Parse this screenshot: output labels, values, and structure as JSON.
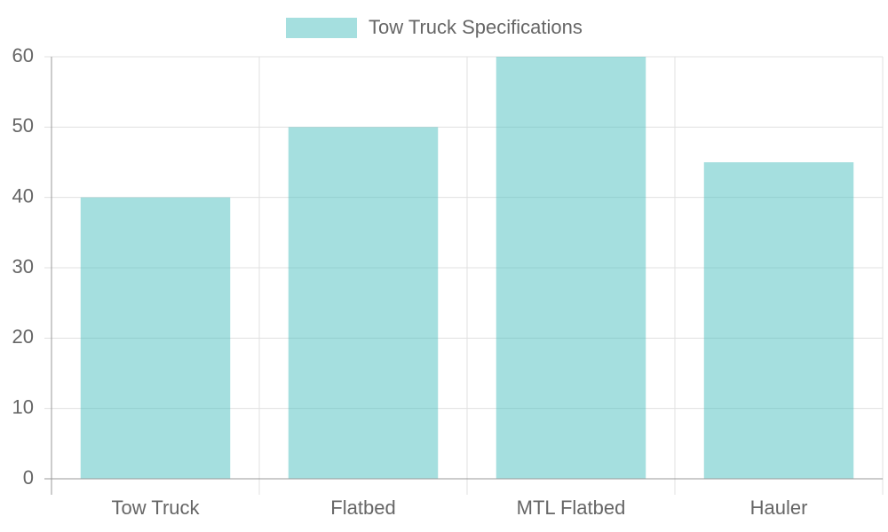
{
  "chart_data": {
    "type": "bar",
    "categories": [
      "Tow Truck",
      "Flatbed",
      "MTL Flatbed",
      "Hauler"
    ],
    "series": [
      {
        "name": "Tow Truck Specifications",
        "color": "rgba(75,192,192,0.5)",
        "values": [
          40,
          50,
          60,
          45
        ]
      }
    ],
    "ylim": [
      0,
      60
    ],
    "yticks": [
      0,
      10,
      20,
      30,
      40,
      50,
      60
    ],
    "grid": true,
    "legend": "top"
  }
}
